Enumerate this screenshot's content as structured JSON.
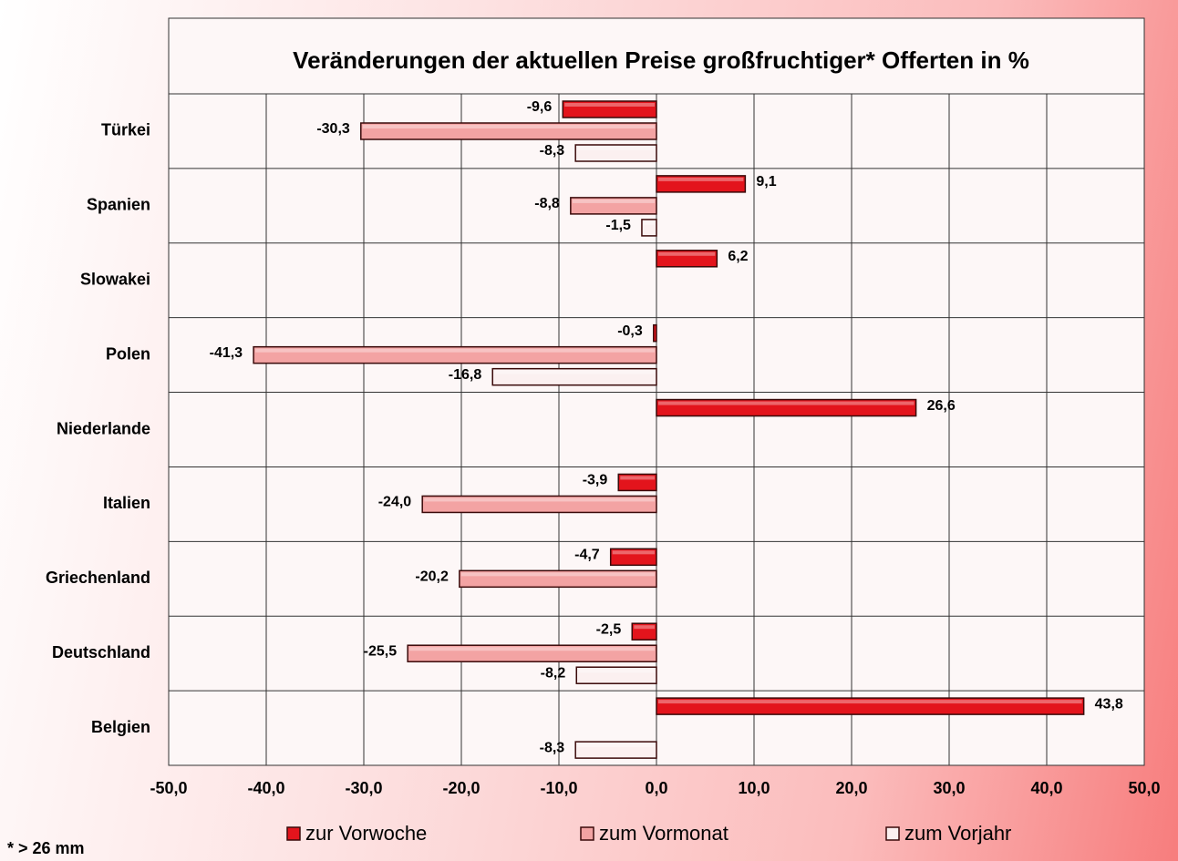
{
  "chart_data": {
    "type": "bar",
    "orientation": "horizontal",
    "title": "Veränderungen der aktuellen Preise großfruchtiger* Offerten in %",
    "footnote": "* > 26 mm",
    "categories": [
      "Türkei",
      "Spanien",
      "Slowakei",
      "Polen",
      "Niederlande",
      "Italien",
      "Griechenland",
      "Deutschland",
      "Belgien"
    ],
    "series": [
      {
        "name": "zur Vorwoche",
        "color": "#e3141c",
        "values": [
          -9.6,
          9.1,
          6.2,
          -0.3,
          26.6,
          -3.9,
          -4.7,
          -2.5,
          43.8
        ],
        "value_labels": [
          "-9,6",
          "9,1",
          "6,2",
          "-0,3",
          "26,6",
          "-3,9",
          "-4,7",
          "-2,5",
          "43,8"
        ]
      },
      {
        "name": "zum Vormonat",
        "color": "#f3a3a3",
        "values": [
          -30.3,
          -8.8,
          null,
          -41.3,
          null,
          -24.0,
          -20.2,
          -25.5,
          null
        ],
        "value_labels": [
          "-30,3",
          "-8,8",
          null,
          "-41,3",
          null,
          "-24,0",
          "-20,2",
          "-25,5",
          null
        ]
      },
      {
        "name": "zum Vorjahr",
        "color": "#fbf0f0",
        "values": [
          -8.3,
          -1.5,
          null,
          -16.8,
          null,
          null,
          null,
          -8.2,
          -8.3
        ],
        "value_labels": [
          "-8,3",
          "-1,5",
          null,
          "-16,8",
          null,
          null,
          null,
          "-8,2",
          "-8,3"
        ]
      }
    ],
    "xlim": [
      -50,
      50
    ],
    "xticks": [
      {
        "value": -50,
        "label": "-50,0"
      },
      {
        "value": -40,
        "label": "-40,0"
      },
      {
        "value": -30,
        "label": "-30,0"
      },
      {
        "value": -20,
        "label": "-20,0"
      },
      {
        "value": -10,
        "label": "-10,0"
      },
      {
        "value": 0,
        "label": "0,0"
      },
      {
        "value": 10,
        "label": "10,0"
      },
      {
        "value": 20,
        "label": "20,0"
      },
      {
        "value": 30,
        "label": "30,0"
      },
      {
        "value": 40,
        "label": "40,0"
      },
      {
        "value": 50,
        "label": "50,0"
      }
    ],
    "grid": true,
    "legend": "bottom"
  }
}
